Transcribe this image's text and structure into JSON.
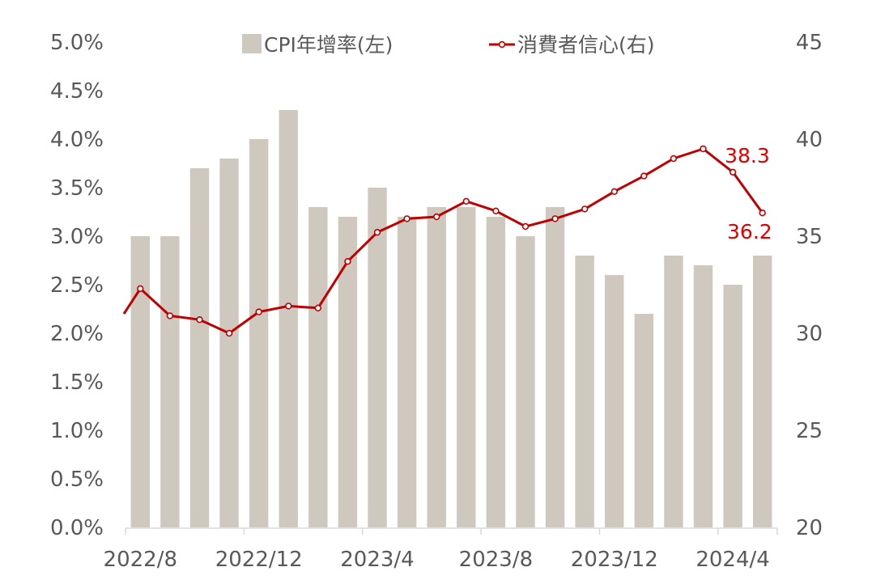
{
  "chart_data": {
    "type": "bar+line",
    "categories": [
      "2022/8",
      "2022/9",
      "2022/10",
      "2022/11",
      "2022/12",
      "2023/1",
      "2023/2",
      "2023/3",
      "2023/4",
      "2023/5",
      "2023/6",
      "2023/7",
      "2023/8",
      "2023/9",
      "2023/10",
      "2023/11",
      "2023/12",
      "2024/1",
      "2024/2",
      "2024/3",
      "2024/4",
      "2024/5"
    ],
    "x_tick_labels": [
      "2022/8",
      "2022/12",
      "2023/4",
      "2023/8",
      "2023/12",
      "2024/4"
    ],
    "series": [
      {
        "name": "CPI年增率(左)",
        "type": "bar",
        "axis": "left",
        "color": "#cfc8be",
        "values": [
          3.0,
          3.0,
          3.7,
          3.8,
          4.0,
          4.3,
          3.3,
          3.2,
          3.5,
          3.2,
          3.3,
          3.3,
          3.2,
          3.0,
          3.3,
          2.8,
          2.6,
          2.2,
          2.8,
          2.7,
          2.5,
          2.8
        ]
      },
      {
        "name": "消費者信心(右)",
        "type": "line",
        "axis": "right",
        "color": "#c00000",
        "lead_in": 31.0,
        "values": [
          32.3,
          30.9,
          30.7,
          30.0,
          31.1,
          31.4,
          31.3,
          33.7,
          35.2,
          35.9,
          36.0,
          36.8,
          36.3,
          35.5,
          35.9,
          36.4,
          37.3,
          38.1,
          39.0,
          39.5,
          38.3,
          36.2
        ]
      }
    ],
    "data_labels": [
      {
        "series": 1,
        "index": 20,
        "text": "38.3"
      },
      {
        "series": 1,
        "index": 21,
        "text": "36.2"
      }
    ],
    "left_axis": {
      "ylim": [
        0,
        5
      ],
      "ticks": [
        0,
        0.5,
        1,
        1.5,
        2,
        2.5,
        3,
        3.5,
        4,
        4.5,
        5
      ],
      "tick_labels": [
        "0.0%",
        "0.5%",
        "1.0%",
        "1.5%",
        "2.0%",
        "2.5%",
        "3.0%",
        "3.5%",
        "4.0%",
        "4.5%",
        "5.0%"
      ]
    },
    "right_axis": {
      "ylim": [
        20,
        45
      ],
      "ticks": [
        20,
        25,
        30,
        35,
        40,
        45
      ],
      "tick_labels": [
        "20",
        "25",
        "30",
        "35",
        "40",
        "45"
      ]
    },
    "legend_position": "top-center",
    "grid": false,
    "title": "",
    "xlabel": "",
    "ylabel": ""
  }
}
